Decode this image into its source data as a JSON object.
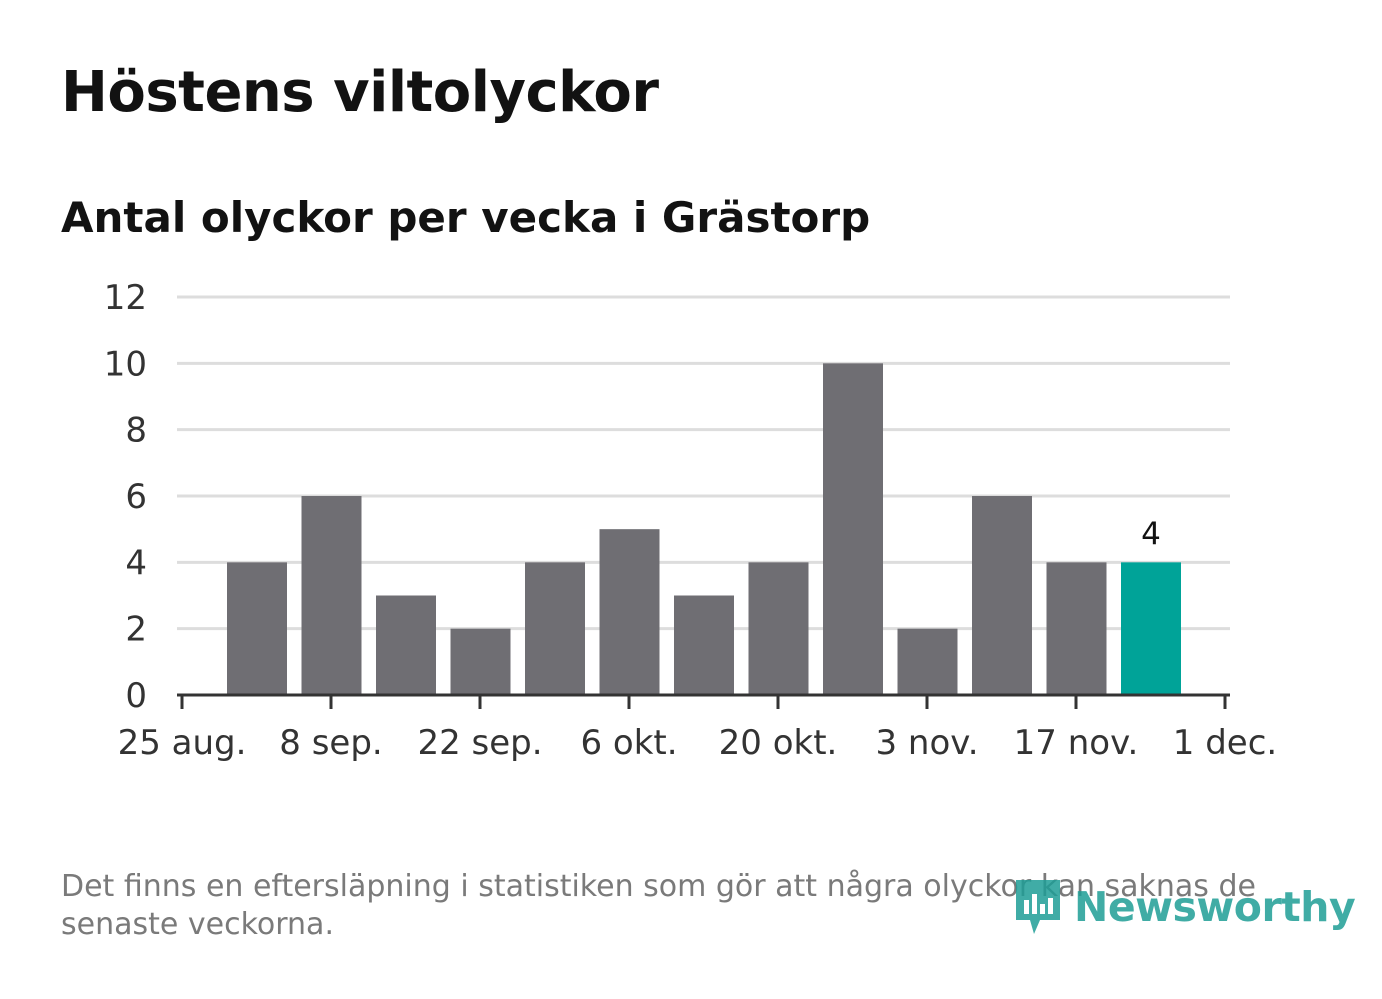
{
  "header": {
    "title": "Höstens viltolyckor",
    "subtitle": "Antal olyckor per vecka i Grästorp"
  },
  "footer": {
    "note": "Det finns en eftersläpning i statistiken som gör att några olyckor kan saknas de senaste veckorna.",
    "logo_text": "Newsworthy"
  },
  "colors": {
    "bar": "#6f6e73",
    "highlight": "#00a398",
    "grid": "#dddddd",
    "axis": "#333333",
    "logo": "#1f9e96"
  },
  "chart_data": {
    "type": "bar",
    "title": "Höstens viltolyckor",
    "subtitle": "Antal olyckor per vecka i Grästorp",
    "xlabel": "",
    "ylabel": "",
    "ylim": [
      0,
      12
    ],
    "yticks": [
      0,
      2,
      4,
      6,
      8,
      10,
      12
    ],
    "x_tick_labels": [
      "25 aug.",
      "8 sep.",
      "22 sep.",
      "6 okt.",
      "20 okt.",
      "3 nov.",
      "17 nov.",
      "1 dec."
    ],
    "values": [
      4,
      6,
      3,
      2,
      4,
      5,
      3,
      4,
      10,
      2,
      6,
      4,
      4
    ],
    "highlight_index": 12,
    "highlight_label": "4",
    "grid": true,
    "legend": "none"
  }
}
